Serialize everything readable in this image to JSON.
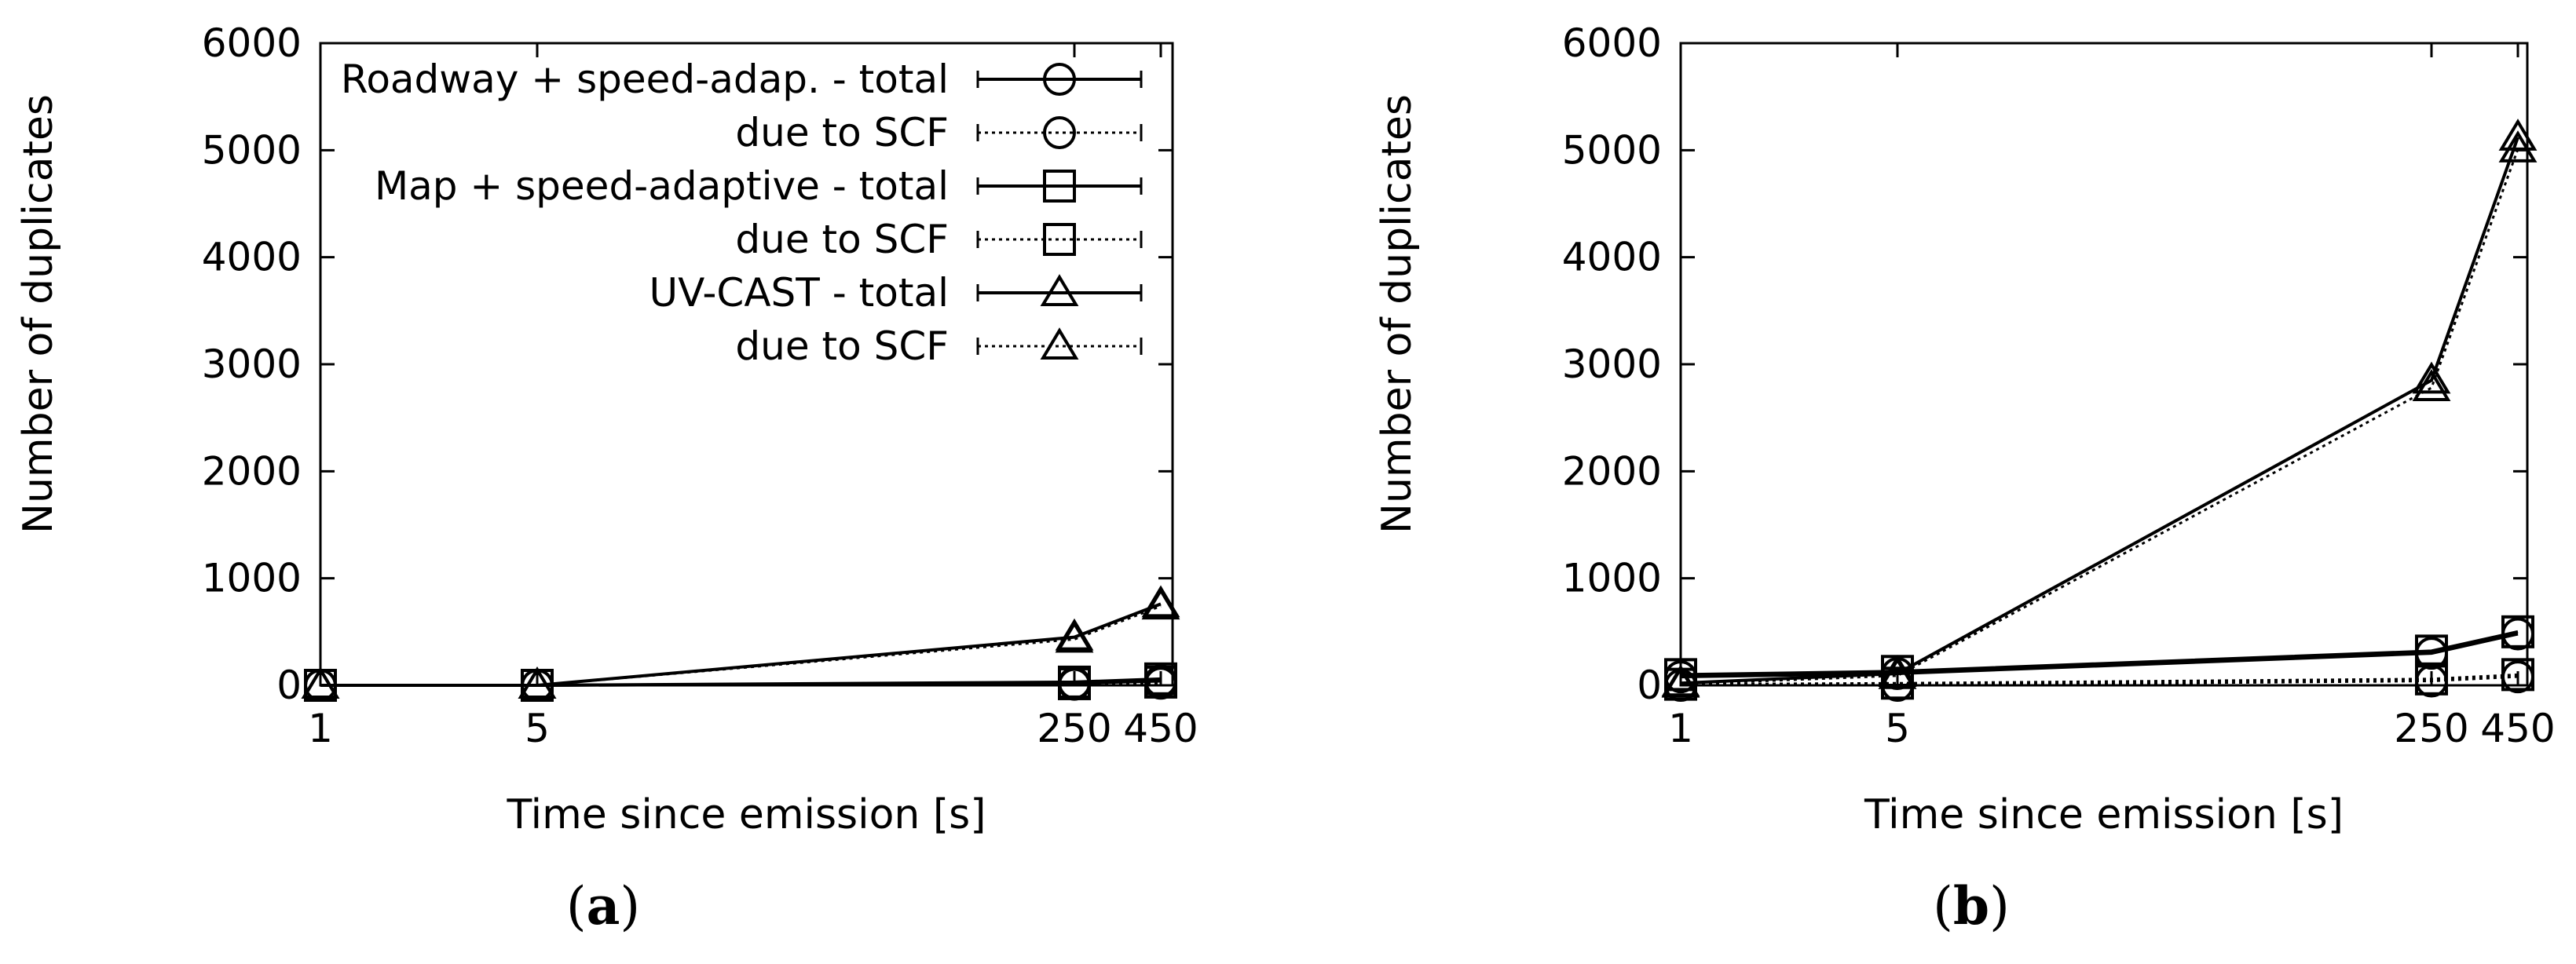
{
  "chart_data": [
    {
      "type": "line",
      "panel_label": "(a)",
      "xlabel": "Time since emission [s]",
      "ylabel": "Number of duplicates",
      "x_categories": [
        "1",
        "5",
        "250",
        "450"
      ],
      "ylim": [
        0,
        6000
      ],
      "yticks": [
        "0",
        "1000",
        "2000",
        "3000",
        "4000",
        "5000",
        "6000"
      ],
      "legend_position": "top-right",
      "series": [
        {
          "name": "Roadway + speed-adap. - total",
          "legend_label": "Roadway + speed-adap. - total",
          "marker": "circle",
          "style": "solid",
          "values": [
            0,
            0,
            20,
            40
          ]
        },
        {
          "name": "Roadway + speed-adap. - due to SCF",
          "legend_label": "due to SCF",
          "marker": "circle",
          "style": "dotted",
          "values": [
            0,
            0,
            10,
            20
          ]
        },
        {
          "name": "Map + speed-adaptive - total",
          "legend_label": "Map + speed-adaptive - total",
          "marker": "square",
          "style": "solid",
          "values": [
            0,
            0,
            30,
            60
          ]
        },
        {
          "name": "Map + speed-adaptive - due to SCF",
          "legend_label": "due to SCF",
          "marker": "square",
          "style": "dotted",
          "values": [
            0,
            0,
            15,
            30
          ]
        },
        {
          "name": "UV-CAST - total",
          "legend_label": "UV-CAST - total",
          "marker": "triangle",
          "style": "solid",
          "values": [
            0,
            0,
            450,
            760
          ]
        },
        {
          "name": "UV-CAST - due to SCF",
          "legend_label": "due to SCF",
          "marker": "triangle",
          "style": "dotted",
          "values": [
            0,
            0,
            430,
            740
          ]
        }
      ]
    },
    {
      "type": "line",
      "panel_label": "(b)",
      "xlabel": "Time since emission [s]",
      "ylabel": "Number of duplicates",
      "x_categories": [
        "1",
        "5",
        "250",
        "450"
      ],
      "ylim": [
        0,
        6000
      ],
      "yticks": [
        "0",
        "1000",
        "2000",
        "3000",
        "4000",
        "5000",
        "6000"
      ],
      "series": [
        {
          "name": "Roadway + speed-adap. - total",
          "marker": "circle",
          "style": "solid",
          "values": [
            80,
            110,
            300,
            480
          ]
        },
        {
          "name": "Roadway + speed-adap. - due to SCF",
          "marker": "circle",
          "style": "dotted",
          "values": [
            0,
            0,
            40,
            80
          ]
        },
        {
          "name": "Map + speed-adaptive - total",
          "marker": "square",
          "style": "solid",
          "values": [
            100,
            130,
            320,
            500
          ]
        },
        {
          "name": "Map + speed-adaptive - due to SCF",
          "marker": "square",
          "style": "dotted",
          "values": [
            10,
            20,
            60,
            100
          ]
        },
        {
          "name": "UV-CAST - total",
          "marker": "triangle",
          "style": "solid",
          "values": [
            20,
            110,
            2850,
            5120
          ]
        },
        {
          "name": "UV-CAST - due to SCF",
          "marker": "triangle",
          "style": "dotted",
          "values": [
            10,
            90,
            2780,
            5010
          ]
        }
      ]
    }
  ]
}
